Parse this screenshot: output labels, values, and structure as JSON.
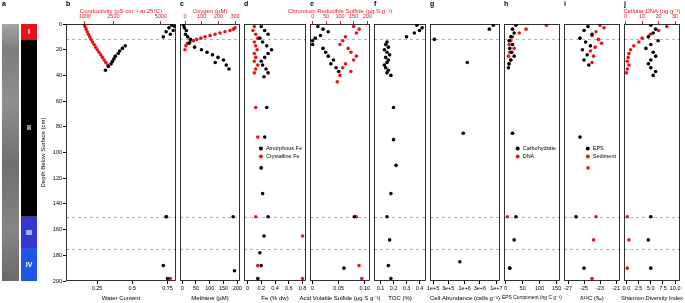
{
  "chart_data": [
    {
      "type": "strip",
      "title": "a",
      "ylim": [
        0,
        200
      ],
      "zones": [
        {
          "label": "I",
          "from": 0,
          "to": 12,
          "color": "#e8141b"
        },
        {
          "label": "II",
          "from": 12,
          "to": 150,
          "color": "#000000"
        },
        {
          "label": "III",
          "from": 150,
          "to": 175,
          "color": "#3535d0"
        },
        {
          "label": "IV",
          "from": 175,
          "to": 200,
          "color": "#1d55e8"
        }
      ]
    },
    {
      "type": "scatter",
      "title": "b",
      "ylabel": "Depth Below Surface (cm)",
      "ylim": [
        0,
        200
      ],
      "yticks": [
        0,
        20,
        40,
        60,
        80,
        100,
        120,
        140,
        160,
        180,
        200
      ],
      "xlabel": "Water Content",
      "xlim": [
        0.03,
        0.81
      ],
      "xticks": [
        0.25,
        0.5,
        0.75
      ],
      "x2label": "Conductivity (µS cm⁻¹ at 25°C)",
      "x2lim": [
        0,
        5800
      ],
      "x2ticks": [
        1000,
        2500,
        5000
      ],
      "series": [
        {
          "color": "#000000",
          "x": [
            0.78,
            0.8,
            0.76,
            0.79,
            0.74,
            0.77,
            0.72,
            0.45,
            0.43,
            0.41,
            0.4,
            0.38,
            0.37,
            0.36,
            0.35,
            0.33,
            0.31,
            0.74,
            0.72,
            0.75
          ],
          "y": [
            1,
            2,
            3,
            5,
            6,
            8,
            10,
            17,
            19,
            21,
            23,
            25,
            27,
            29,
            31,
            33,
            36,
            150,
            188,
            198
          ]
        },
        {
          "color": "#e8141b",
          "axis": "x2",
          "x": [
            950,
            1000,
            1060,
            1120,
            1180,
            1250,
            1320,
            1400,
            1480,
            1560,
            1650,
            1740,
            1830,
            1920,
            2010,
            2100,
            2200,
            5300,
            5500
          ],
          "y": [
            0,
            2,
            4,
            6,
            8,
            10,
            12,
            14,
            16,
            18,
            20,
            22,
            24,
            26,
            28,
            30,
            32,
            150,
            198
          ]
        }
      ]
    },
    {
      "type": "scatter",
      "title": "c",
      "tick_labels": "x",
      "ylim": [
        0,
        200
      ],
      "xlabel": "Methane (µM)",
      "xlim": [
        -8,
        210
      ],
      "xticks": [
        0,
        50,
        100,
        150,
        200
      ],
      "x2label": "Oxygen (µM)",
      "x2lim": [
        -30,
        330
      ],
      "x2ticks": [
        0,
        100,
        200,
        300
      ],
      "series": [
        {
          "color": "#000000",
          "x": [
            5,
            8,
            15,
            12,
            20,
            30,
            25,
            45,
            70,
            90,
            110,
            130,
            150,
            120,
            160,
            170,
            185,
            190
          ],
          "y": [
            1,
            3,
            5,
            8,
            10,
            12,
            15,
            18,
            20,
            22,
            24,
            26,
            28,
            30,
            32,
            35,
            150,
            192
          ]
        },
        {
          "color": "#e8141b",
          "axis": "x2",
          "x": [
            300,
            290,
            270,
            240,
            210,
            180,
            150,
            120,
            95,
            70,
            50,
            30,
            15,
            5,
            0
          ],
          "y": [
            3,
            4,
            5,
            6,
            7,
            8,
            9,
            10,
            11,
            12,
            13,
            14,
            15,
            17,
            20
          ]
        }
      ]
    },
    {
      "type": "scatter",
      "title": "d",
      "tick_labels": "x",
      "ylim": [
        0,
        200
      ],
      "legend": "right",
      "xlabel": "Fe (% dw)",
      "xlim": [
        -0.05,
        0.85
      ],
      "xticks": [
        0,
        0.2,
        0.4,
        0.6,
        0.8
      ],
      "series": [
        {
          "name": "Amorphous Fe",
          "color": "#000000",
          "x": [
            0.2,
            0.25,
            0.3,
            0.18,
            0.22,
            0.28,
            0.35,
            0.3,
            0.25,
            0.2,
            0.22,
            0.27,
            0.3,
            0.24,
            0.28,
            0.25,
            0.2,
            0.22,
            0.3,
            0.24,
            0.18,
            0.2,
            0.15
          ],
          "y": [
            2,
            5,
            8,
            11,
            14,
            17,
            20,
            23,
            26,
            29,
            32,
            35,
            38,
            41,
            65,
            88,
            112,
            132,
            150,
            165,
            178,
            188,
            198
          ]
        },
        {
          "name": "Crystalline Fe",
          "color": "#e8141b",
          "x": [
            0.1,
            0.08,
            0.12,
            0.15,
            0.1,
            0.12,
            0.14,
            0.1,
            0.12,
            0.1,
            0.15,
            0.12,
            0.1,
            0.12,
            0.15,
            0.2,
            0.12,
            0.8,
            0.15,
            0.8
          ],
          "y": [
            2,
            5,
            8,
            11,
            14,
            17,
            20,
            23,
            26,
            29,
            32,
            35,
            38,
            65,
            88,
            112,
            150,
            165,
            188,
            198
          ]
        }
      ]
    },
    {
      "type": "scatter",
      "title": "e",
      "tick_labels": "x",
      "ylim": [
        0,
        200
      ],
      "xlabel": "Acid Volatile Sulfide (µg S g⁻¹)",
      "xlim": [
        -0.005,
        0.11
      ],
      "xticks": [
        0,
        0.05,
        {
          "value": 0.1,
          "label": "0.10"
        }
      ],
      "x2label": "Chromium Reducible Sulfide (µg S g⁻¹)",
      "x2lim": [
        -10,
        210
      ],
      "x2ticks": [
        0,
        50,
        100,
        150,
        200
      ],
      "series": [
        {
          "color": "#000000",
          "x": [
            0.01,
            0.02,
            0.03,
            0.015,
            0.005,
            0,
            0,
            0.02,
            0.025,
            0.03,
            0.04,
            0.035,
            0.045,
            0.05,
            0.08,
            0.06
          ],
          "y": [
            2,
            4,
            6,
            9,
            11,
            13,
            16,
            19,
            22,
            25,
            28,
            31,
            34,
            37,
            150,
            190
          ]
        },
        {
          "color": "#e8141b",
          "axis": "x2",
          "x": [
            150,
            170,
            160,
            120,
            110,
            100,
            130,
            140,
            160,
            150,
            120,
            110,
            140,
            100,
            90,
            160,
            170,
            180
          ],
          "y": [
            2,
            4,
            7,
            10,
            13,
            16,
            19,
            22,
            25,
            28,
            31,
            34,
            37,
            40,
            45,
            150,
            188,
            198
          ]
        }
      ]
    },
    {
      "type": "scatter",
      "title": "f",
      "tick_labels": "x",
      "ylim": [
        0,
        200
      ],
      "xlabel": "TOC (%)",
      "xlim": [
        0.05,
        0.45
      ],
      "xticks": [
        0.1,
        0.2,
        0.3,
        0.4
      ],
      "series": [
        {
          "color": "#000000",
          "x": [
            0.38,
            0.42,
            0.4,
            0.36,
            0.3,
            0.15,
            0.14,
            0.16,
            0.13,
            0.15,
            0.17,
            0.14,
            0.16,
            0.15,
            0.13,
            0.14,
            0.16,
            0.15,
            0.18,
            0.2,
            0.2,
            0.22,
            0.18,
            0.15,
            0.17,
            0.16,
            0.18
          ],
          "y": [
            1,
            3,
            5,
            7,
            10,
            14,
            16,
            18,
            20,
            22,
            24,
            26,
            28,
            30,
            32,
            34,
            36,
            38,
            40,
            65,
            90,
            110,
            132,
            150,
            168,
            188,
            198
          ]
        }
      ]
    },
    {
      "type": "scatter",
      "title": "g",
      "tick_labels": "x",
      "ylim": [
        0,
        200
      ],
      "log": "x",
      "xlabel": "Cell Abundance (cells g⁻¹)",
      "xlim": [
        80000,
        13000000
      ],
      "xticks": [
        {
          "value": 100000,
          "label": "1e+5"
        },
        {
          "value": 300000,
          "label": "3e+5"
        },
        {
          "value": 1000000,
          "label": "1e+6"
        },
        {
          "value": 3000000,
          "label": "3e+6"
        },
        {
          "value": 10000000,
          "label": "1e+7"
        }
      ],
      "series": [
        {
          "color": "#000000",
          "x": [
            8000000,
            6000000,
            110000,
            1200000,
            900000,
            700000
          ],
          "y": [
            1,
            4,
            12,
            30,
            85,
            185
          ]
        }
      ]
    },
    {
      "type": "scatter",
      "title": "h",
      "tick_labels": "x",
      "ylim": [
        0,
        200
      ],
      "legend": "right",
      "xlabel": "EPS Component (ng C g⁻¹)",
      "xlim": [
        -5,
        160
      ],
      "xticks": [
        0,
        50,
        100,
        150
      ],
      "series": [
        {
          "name": "Carbohydrate",
          "color": "#000000",
          "x": [
            30,
            20,
            25,
            15,
            10,
            20,
            12,
            18,
            25,
            15,
            10,
            8,
            20,
            30,
            25,
            12
          ],
          "y": [
            1,
            4,
            7,
            10,
            13,
            16,
            19,
            22,
            25,
            28,
            31,
            34,
            85,
            150,
            168,
            190
          ]
        },
        {
          "name": "DNA",
          "color": "#e8141b",
          "x": [
            120,
            60,
            40,
            20,
            15,
            10,
            25,
            12,
            8,
            15,
            10,
            20,
            5,
            12
          ],
          "y": [
            1,
            4,
            7,
            10,
            13,
            16,
            19,
            22,
            25,
            28,
            31,
            85,
            150,
            190
          ]
        }
      ]
    },
    {
      "type": "scatter",
      "title": "i",
      "tick_labels": "x",
      "ylim": [
        0,
        200
      ],
      "legend": "right",
      "xlabel": "δ¹³C (‰)",
      "xlim": [
        -27.5,
        -20.5
      ],
      "xticks": [
        -27,
        -25,
        -23,
        -21
      ],
      "series": [
        {
          "name": "EPS",
          "color": "#000000",
          "x": [
            -24.5,
            -25,
            -24,
            -25.5,
            -24.8,
            -24.2,
            -25.2,
            -24.6,
            -25,
            -24.4,
            -25.5,
            -26,
            -25
          ],
          "y": [
            2,
            5,
            8,
            11,
            14,
            17,
            20,
            24,
            28,
            32,
            88,
            150,
            190
          ]
        },
        {
          "name": "Sediment",
          "color": "#e8141b",
          "x": [
            -23,
            -22.5,
            -23.5,
            -24,
            -23.2,
            -22.8,
            -23.6,
            -24.2,
            -23.8,
            -24,
            -24.5,
            -23.5,
            -23.8,
            -24
          ],
          "y": [
            1,
            3,
            6,
            9,
            12,
            15,
            18,
            21,
            25,
            30,
            112,
            150,
            168,
            198
          ]
        }
      ]
    },
    {
      "type": "scatter",
      "title": "j",
      "tick_labels": "x",
      "ylim": [
        0,
        200
      ],
      "xlabel": "Shannon Diversity Index",
      "xlim": [
        -0.5,
        11
      ],
      "xticks": [
        {
          "value": 0,
          "label": "0.0"
        },
        2.5,
        {
          "value": 5,
          "label": "5.0"
        },
        7.5,
        {
          "value": 10,
          "label": "10.0"
        }
      ],
      "x2label": "Cellular DNA (ng g⁻¹)",
      "x2lim": [
        -1,
        33
      ],
      "x2ticks": [
        0,
        10,
        20,
        30
      ],
      "series": [
        {
          "color": "#000000",
          "x": [
            5,
            6,
            5.5,
            4.5,
            6.5,
            5,
            4,
            5.5,
            6,
            5,
            4.5,
            5,
            6,
            5.5,
            5,
            4.5,
            5
          ],
          "y": [
            1,
            4,
            7,
            10,
            13,
            16,
            19,
            22,
            25,
            28,
            31,
            34,
            37,
            40,
            150,
            168,
            190
          ]
        },
        {
          "color": "#e8141b",
          "axis": "x2",
          "x": [
            25,
            20,
            15,
            10,
            8,
            5,
            3,
            2,
            1.5,
            1,
            2,
            1,
            0.5,
            1,
            2,
            1
          ],
          "y": [
            2,
            5,
            8,
            11,
            14,
            17,
            20,
            23,
            26,
            29,
            32,
            35,
            38,
            150,
            168,
            190
          ]
        }
      ]
    }
  ]
}
